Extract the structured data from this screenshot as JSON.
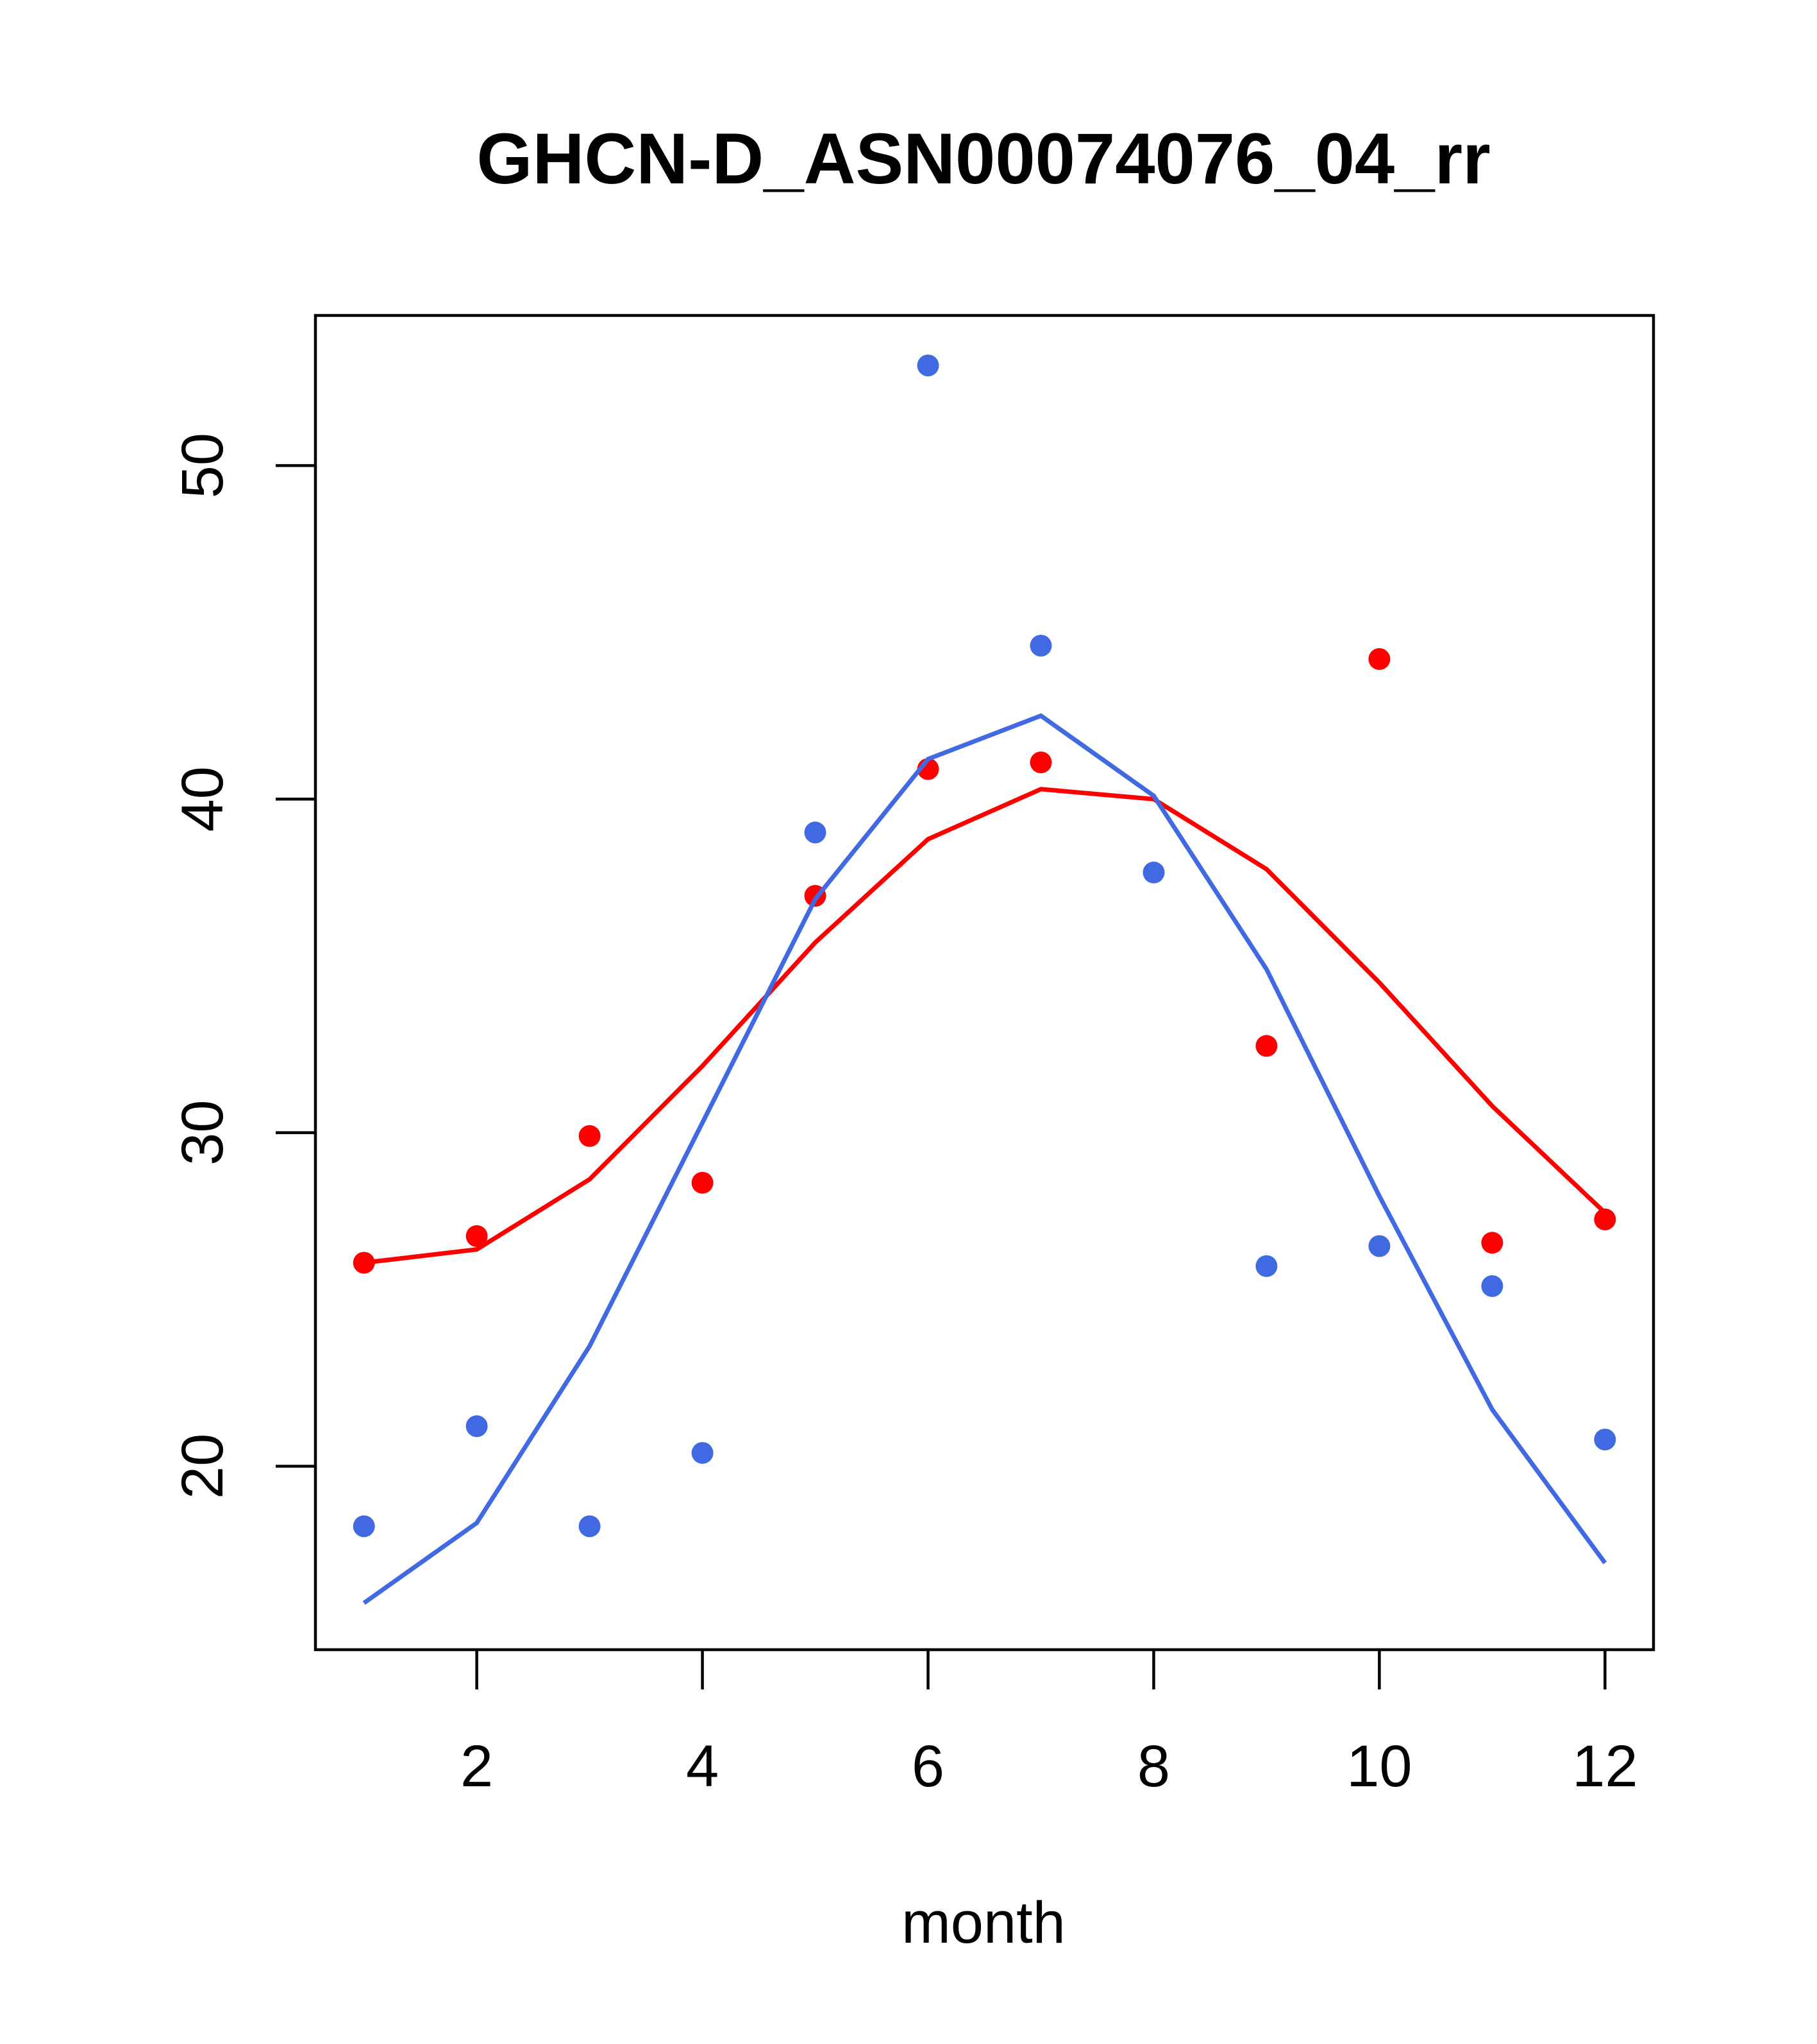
{
  "chart_data": {
    "type": "scatter",
    "title": "GHCN-D_ASN00074076_04_rr",
    "xlabel": "month",
    "ylabel": "",
    "xlim": [
      0.57,
      12.43
    ],
    "ylim": [
      14.5,
      54.5
    ],
    "x_ticks": [
      "2",
      "4",
      "6",
      "8",
      "10",
      "12"
    ],
    "y_ticks": [
      "20",
      "30",
      "40",
      "50"
    ],
    "x_tick_values": [
      2,
      4,
      6,
      8,
      10,
      12
    ],
    "y_tick_values": [
      20,
      30,
      40,
      50
    ],
    "grid": false,
    "legend": "none",
    "series": [
      {
        "color": "#ff0000",
        "points": {
          "x": [
            1,
            2,
            3,
            4,
            5,
            6,
            7,
            8,
            9,
            10,
            11,
            12
          ],
          "y": [
            26.1,
            26.9,
            29.9,
            28.5,
            37.1,
            40.9,
            41.1,
            null,
            32.6,
            44.2,
            26.7,
            27.4
          ]
        },
        "line": {
          "x": [
            1,
            2,
            3,
            4,
            5,
            6,
            7,
            8,
            9,
            10,
            11,
            12
          ],
          "y": [
            26.1,
            26.5,
            28.6,
            32.0,
            35.7,
            38.8,
            40.3,
            40.0,
            37.9,
            34.5,
            30.8,
            27.6
          ]
        }
      },
      {
        "color": "#4169e1",
        "points": {
          "x": [
            1,
            2,
            3,
            4,
            5,
            6,
            7,
            8,
            9,
            10,
            11,
            12
          ],
          "y": [
            18.2,
            21.2,
            18.2,
            20.4,
            39.0,
            53.0,
            44.6,
            37.8,
            26.0,
            26.6,
            25.4,
            20.8
          ]
        },
        "line": {
          "x": [
            1,
            2,
            3,
            4,
            5,
            6,
            7,
            8,
            9,
            10,
            11,
            12
          ],
          "y": [
            15.9,
            18.3,
            23.6,
            30.3,
            37.0,
            41.2,
            42.5,
            40.1,
            34.9,
            28.1,
            21.7,
            17.1
          ]
        }
      }
    ]
  }
}
